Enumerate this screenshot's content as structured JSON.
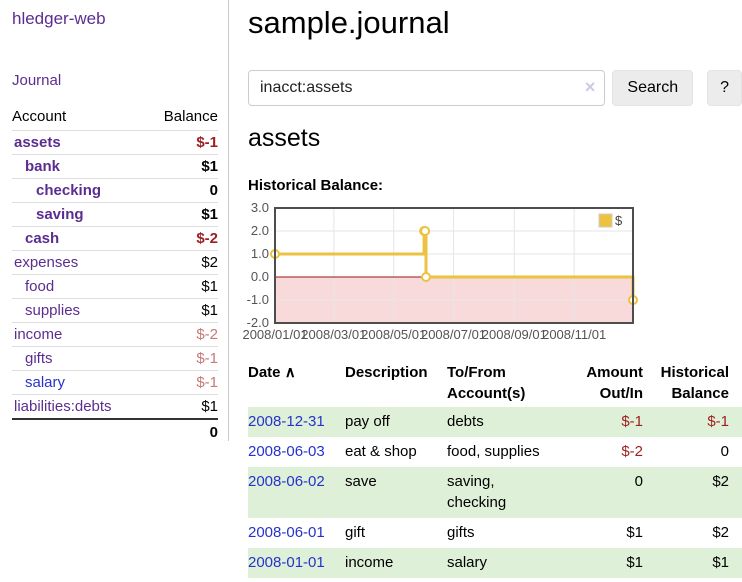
{
  "app": {
    "brand": "hledger-web"
  },
  "sidebar": {
    "journal_link": "Journal",
    "accounts": {
      "header_account": "Account",
      "header_balance": "Balance",
      "rows": [
        {
          "name": "assets",
          "balance": "$-1",
          "depth": 0,
          "matched": true,
          "blue": false
        },
        {
          "name": "bank",
          "balance": "$1",
          "depth": 1,
          "matched": true,
          "blue": false
        },
        {
          "name": "checking",
          "balance": "0",
          "depth": 2,
          "matched": true,
          "blue": false
        },
        {
          "name": "saving",
          "balance": "$1",
          "depth": 2,
          "matched": true,
          "blue": false
        },
        {
          "name": "cash",
          "balance": "$-2",
          "depth": 1,
          "matched": true,
          "blue": false
        },
        {
          "name": "expenses",
          "balance": "$2",
          "depth": 0,
          "matched": false,
          "blue": false
        },
        {
          "name": "food",
          "balance": "$1",
          "depth": 1,
          "matched": false,
          "blue": false
        },
        {
          "name": "supplies",
          "balance": "$1",
          "depth": 1,
          "matched": false,
          "blue": false
        },
        {
          "name": "income",
          "balance": "$-2",
          "depth": 0,
          "matched": false,
          "blue": false
        },
        {
          "name": "gifts",
          "balance": "$-1",
          "depth": 1,
          "matched": false,
          "blue": false
        },
        {
          "name": "salary",
          "balance": "$-1",
          "depth": 1,
          "matched": false,
          "blue": true
        },
        {
          "name": "liabilities:debts",
          "balance": "$1",
          "depth": 0,
          "matched": false,
          "blue": false
        }
      ],
      "total": "0"
    }
  },
  "main": {
    "title": "sample.journal",
    "search": {
      "value": "inacct:assets",
      "clear_icon": "×",
      "search_button": "Search",
      "help_button": "?"
    },
    "heading": "assets",
    "chart_title": "Historical Balance:"
  },
  "chart_data": {
    "type": "line",
    "step": true,
    "title": "Historical Balance",
    "series": [
      {
        "name": "$",
        "color": "#edc240",
        "points": [
          [
            "2008-01-01",
            1
          ],
          [
            "2008-06-01",
            2
          ],
          [
            "2008-06-02",
            2
          ],
          [
            "2008-06-03",
            0
          ],
          [
            "2008-12-31",
            -1
          ]
        ]
      }
    ],
    "legend": [
      {
        "label": "$",
        "color": "#edc240"
      }
    ],
    "legend_position": "top-right",
    "x_ticks": [
      "2008/01/01",
      "2008/03/01",
      "2008/05/01",
      "2008/07/01",
      "2008/09/01",
      "2008/11/01"
    ],
    "y_ticks": [
      "3.0",
      "2.0",
      "1.0",
      "0.0",
      "-1.0",
      "-2.0"
    ],
    "xlim": [
      "2008-01-01",
      "2008-12-31"
    ],
    "ylim": [
      -2,
      3
    ],
    "grid": true,
    "negative_region": {
      "below": 0,
      "fill": "#f9dada",
      "line_color": "#9a1414"
    }
  },
  "register": {
    "headers": {
      "date": "Date",
      "description": "Description",
      "tofrom": "To/From Account(s)",
      "amount": "Amount Out/In",
      "balance": "Historical Balance"
    },
    "sort_icon": "∧",
    "rows": [
      {
        "date": "2008-12-31",
        "description": "pay off",
        "accounts": [
          "debts"
        ],
        "amount": "$-1",
        "balance": "$-1"
      },
      {
        "date": "2008-06-03",
        "description": "eat & shop",
        "accounts": [
          "food, supplies"
        ],
        "amount": "$-2",
        "balance": "0"
      },
      {
        "date": "2008-06-02",
        "description": "save",
        "accounts": [
          "saving,",
          "checking"
        ],
        "amount": "0",
        "balance": "$2"
      },
      {
        "date": "2008-06-01",
        "description": "gift",
        "accounts": [
          "gifts"
        ],
        "amount": "$1",
        "balance": "$2"
      },
      {
        "date": "2008-01-01",
        "description": "income",
        "accounts": [
          "salary"
        ],
        "amount": "$1",
        "balance": "$1"
      }
    ]
  },
  "colors": {
    "link_purple": "#5c2d91",
    "link_blue": "#2533cc",
    "negative_strong": "#9c1f1f",
    "negative_soft": "#c47a78",
    "row_stripe_green": "#dff0d8",
    "chart_gold": "#edc240"
  }
}
